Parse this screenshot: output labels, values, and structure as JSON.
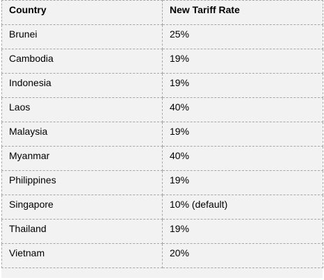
{
  "table": {
    "header": [
      "Country",
      "New Tariff Rate"
    ],
    "rows": [
      [
        "Brunei",
        "25%"
      ],
      [
        "Cambodia",
        "19%"
      ],
      [
        "Indonesia",
        "19%"
      ],
      [
        "Laos",
        "40%"
      ],
      [
        "Malaysia",
        "19%"
      ],
      [
        "Myanmar",
        "40%"
      ],
      [
        "Philippines",
        "19%"
      ],
      [
        "Singapore",
        "10% (default)"
      ],
      [
        "Thailand",
        "19%"
      ],
      [
        "Vietnam",
        "20%"
      ]
    ]
  }
}
